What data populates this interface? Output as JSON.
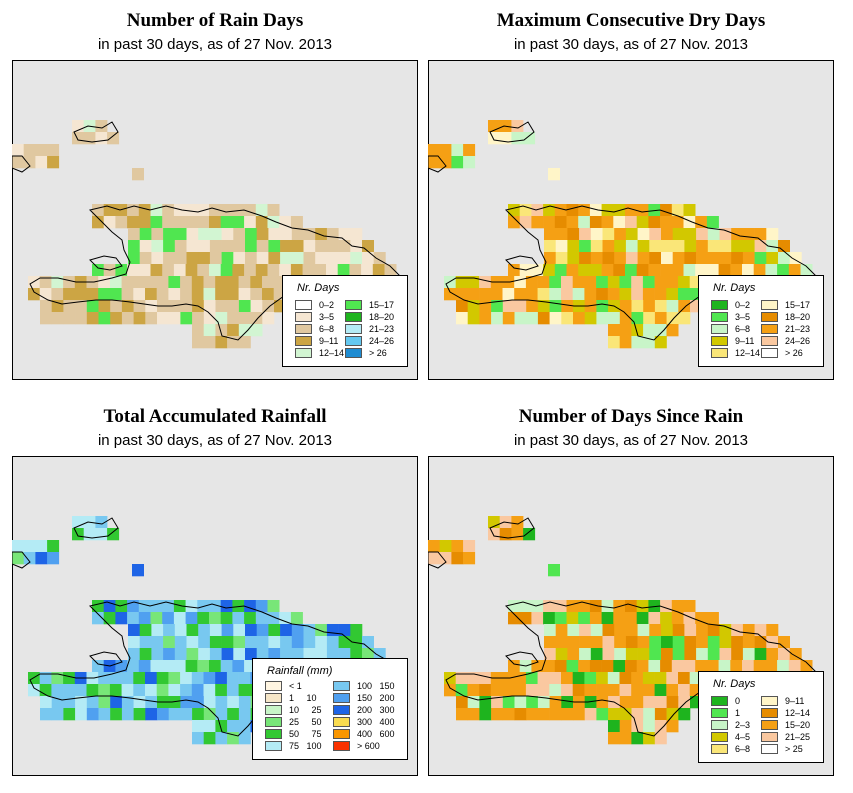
{
  "common_subtitle": "in past 30 days, as of  27 Nov. 2013",
  "colors": {
    "background": "#e6e6e6",
    "outline": "#000000"
  },
  "panels": [
    {
      "title": "Number of Rain Days",
      "subtitle": "in past 30 days, as of  27 Nov. 2013",
      "legend_title": "Nr. Days",
      "legend": [
        {
          "label": "0–2",
          "color": "#ffffff"
        },
        {
          "label": "3–5",
          "color": "#f5e6d2"
        },
        {
          "label": "6–8",
          "color": "#e0c8a0"
        },
        {
          "label": "9–11",
          "color": "#cca544"
        },
        {
          "label": "12–14",
          "color": "#d2f5d2"
        },
        {
          "label": "15–17",
          "color": "#50e650"
        },
        {
          "label": "18–20",
          "color": "#1eb41e"
        },
        {
          "label": "21–23",
          "color": "#b4ebf5"
        },
        {
          "label": "24–26",
          "color": "#64c8f0"
        },
        {
          "label": "> 26",
          "color": "#1e8cd2"
        }
      ],
      "palette": [
        "#f5e6d2",
        "#e0c8a0",
        "#cca544",
        "#e0c8a0",
        "#f5e6d2",
        "#e0c8a0",
        "#50e650",
        "#cca544",
        "#d2f5d2",
        "#e0c8a0"
      ]
    },
    {
      "title": "Maximum Consecutive Dry Days",
      "subtitle": "in past 30 days, as of  27 Nov. 2013",
      "legend_title": "Nr. Days",
      "legend": [
        {
          "label": "0–2",
          "color": "#1eb41e"
        },
        {
          "label": "3–5",
          "color": "#50e650"
        },
        {
          "label": "6–8",
          "color": "#c8f5c8"
        },
        {
          "label": "9–11",
          "color": "#d2c800"
        },
        {
          "label": "12–14",
          "color": "#fae678"
        },
        {
          "label": "15–17",
          "color": "#fff5c8"
        },
        {
          "label": "18–20",
          "color": "#e68c00"
        },
        {
          "label": "21–23",
          "color": "#f5a014"
        },
        {
          "label": "24–26",
          "color": "#fac8a0"
        },
        {
          "label": "> 26",
          "color": "#ffffff"
        }
      ],
      "palette": [
        "#f5a014",
        "#e68c00",
        "#d2c800",
        "#f5a014",
        "#fae678",
        "#fff5c8",
        "#f5a014",
        "#fac8a0",
        "#50e650",
        "#c8f5c8",
        "#d2c800",
        "#f5a014"
      ]
    },
    {
      "title": "Total Accumulated Rainfall",
      "subtitle": "in past 30 days, as of  27 Nov. 2013",
      "legend_title": "Rainfall (mm)",
      "legend": [
        {
          "label": "< 1",
          "color": "#fff5e1"
        },
        {
          "label": "1     10",
          "color": "#f5e6c8"
        },
        {
          "label": "10     25",
          "color": "#c8f5c8"
        },
        {
          "label": "25     50",
          "color": "#78e678"
        },
        {
          "label": "50     75",
          "color": "#32c832"
        },
        {
          "label": "75   100",
          "color": "#b4ebf5"
        },
        {
          "label": "100   150",
          "color": "#78c8f0"
        },
        {
          "label": "150   200",
          "color": "#50a0f0"
        },
        {
          "label": "200   300",
          "color": "#1e64e6"
        },
        {
          "label": "300   400",
          "color": "#fadc50"
        },
        {
          "label": "400   600",
          "color": "#fa9600"
        },
        {
          "label": "> 600",
          "color": "#fa3200"
        }
      ],
      "palette": [
        "#b4ebf5",
        "#78c8f0",
        "#32c832",
        "#78e678",
        "#50a0f0",
        "#b4ebf5",
        "#78c8f0",
        "#1e64e6",
        "#32c832",
        "#78c8f0"
      ]
    },
    {
      "title": "Number of Days Since Rain",
      "subtitle": "in past 30 days, as of  27 Nov. 2013",
      "legend_title": "Nr. Days",
      "legend": [
        {
          "label": "0",
          "color": "#1eb41e"
        },
        {
          "label": "1",
          "color": "#50e650"
        },
        {
          "label": "2–3",
          "color": "#c8f5c8"
        },
        {
          "label": "4–5",
          "color": "#d2c800"
        },
        {
          "label": "6–8",
          "color": "#fae678"
        },
        {
          "label": "9–11",
          "color": "#fff5c8"
        },
        {
          "label": "12–14",
          "color": "#e68c00"
        },
        {
          "label": "15–20",
          "color": "#f5a014"
        },
        {
          "label": "21–25",
          "color": "#fac8a0"
        },
        {
          "label": "> 25",
          "color": "#ffffff"
        }
      ],
      "palette": [
        "#f5a014",
        "#fac8a0",
        "#f5a014",
        "#50e650",
        "#d2c800",
        "#1eb41e",
        "#f5a014",
        "#fac8a0",
        "#c8f5c8",
        "#f5a014",
        "#e68c00"
      ]
    }
  ]
}
